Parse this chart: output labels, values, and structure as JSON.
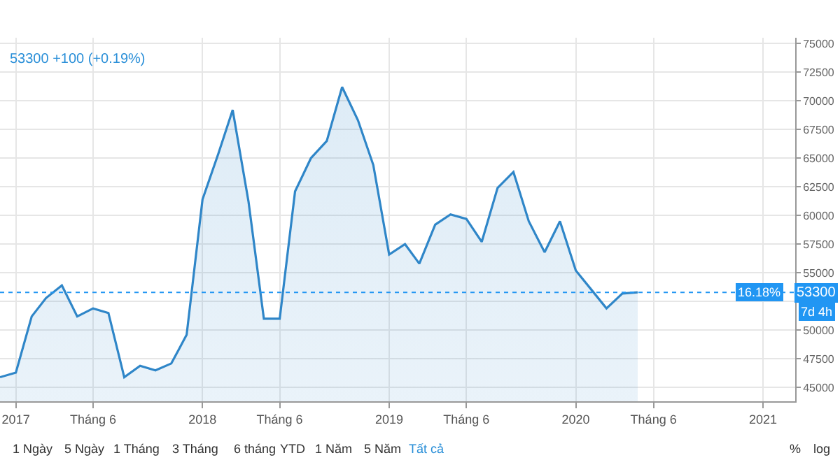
{
  "chart_data": {
    "type": "area",
    "x": [
      "2016-12",
      "2017-01",
      "2017-02",
      "2017-03",
      "2017-04",
      "2017-05",
      "2017-06",
      "2017-07",
      "2017-08",
      "2017-09",
      "2017-10",
      "2017-11",
      "2017-12",
      "2018-01",
      "2018-02",
      "2018-03",
      "2018-04",
      "2018-05",
      "2018-06",
      "2018-07",
      "2018-08",
      "2018-09",
      "2018-10",
      "2018-11",
      "2018-12",
      "2019-01",
      "2019-02",
      "2019-03",
      "2019-04",
      "2019-05",
      "2019-06",
      "2019-07",
      "2019-08",
      "2019-09",
      "2019-10",
      "2019-11",
      "2019-12",
      "2020-01",
      "2020-02",
      "2020-03",
      "2020-04",
      "2020-05"
    ],
    "series": [
      {
        "color": "#2f86c8",
        "values": [
          45900,
          46300,
          51200,
          52800,
          53900,
          51200,
          51900,
          51500,
          45900,
          46900,
          46500,
          47100,
          49600,
          61400,
          65400,
          69200,
          61200,
          51000,
          51000,
          62100,
          65000,
          66500,
          71200,
          68300,
          64400,
          56600,
          57500,
          55800,
          59200,
          60100,
          59700,
          57700,
          62400,
          63800,
          59500,
          56800,
          59500,
          55200,
          53500,
          51900,
          53200,
          53300
        ]
      }
    ],
    "xlim": [
      "2016-12-01",
      "2021-03-05"
    ],
    "xticks": [
      {
        "value": "2017-01-01",
        "label": "2017"
      },
      {
        "value": "2017-06-01",
        "label": "Tháng 6"
      },
      {
        "value": "2018-01-01",
        "label": "2018"
      },
      {
        "value": "2018-06-01",
        "label": "Tháng 6"
      },
      {
        "value": "2019-01-01",
        "label": "2019"
      },
      {
        "value": "2019-06-01",
        "label": "Tháng 6"
      },
      {
        "value": "2020-01-01",
        "label": "2020"
      },
      {
        "value": "2020-06-01",
        "label": "Tháng 6"
      },
      {
        "value": "2021-01-01",
        "label": "2021"
      }
    ],
    "ylim": [
      43800,
      75500
    ],
    "yticks": [
      45000,
      47500,
      50000,
      {
        "value": 52500,
        "label": null
      },
      55000,
      57500,
      60000,
      62500,
      65000,
      67500,
      70000,
      72500,
      75000
    ],
    "grid": true,
    "ref_lines": [
      {
        "axis": "y",
        "value": 53300,
        "label": "53300",
        "color": "#2196f3",
        "line_style": "dotted"
      }
    ],
    "annotations": [
      "53300 +100 (+0.19%)",
      "16.18%",
      "7d 4h",
      "1 Ngày",
      "5 Ngày",
      "1 Tháng",
      "3 Tháng",
      "6 tháng",
      "YTD",
      "1 Năm",
      "5 Năm",
      "Tất cả",
      "%",
      "log"
    ]
  }
}
